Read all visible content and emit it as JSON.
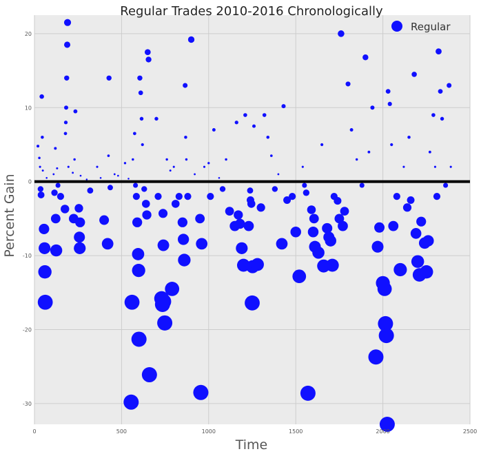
{
  "chart_data": {
    "type": "scatter",
    "title": "Regular Trades 2010-2016 Chronologically",
    "xlabel": "Time",
    "ylabel": "Percent Gain",
    "xlim": [
      0,
      2500
    ],
    "ylim": [
      -32.8,
      22.5
    ],
    "x_ticks": [
      0,
      500,
      1000,
      1500,
      2000,
      2500
    ],
    "y_ticks": [
      20,
      10,
      0,
      -10,
      -20,
      -30
    ],
    "grid": true,
    "legend": {
      "position": "top-right",
      "entries": [
        "Regular"
      ]
    },
    "reference_line_y": 0,
    "colors": {
      "points": "#1010ff",
      "background": "#ebebeb",
      "grid": "#cccccc",
      "reference_line": "#000000"
    },
    "series": [
      {
        "name": "Regular",
        "note_size": "marker area proportional to loss magnitude",
        "points": [
          [
            20,
            4.8
          ],
          [
            28,
            3.2
          ],
          [
            32,
            2.0
          ],
          [
            35,
            -1.0
          ],
          [
            38,
            -1.8
          ],
          [
            42,
            11.5
          ],
          [
            45,
            6.0
          ],
          [
            48,
            1.5
          ],
          [
            55,
            -6.4
          ],
          [
            58,
            -9.0
          ],
          [
            60,
            -12.2
          ],
          [
            62,
            -16.3
          ],
          [
            70,
            0.5
          ],
          [
            110,
            1.0
          ],
          [
            115,
            -1.5
          ],
          [
            120,
            4.5
          ],
          [
            122,
            -5.0
          ],
          [
            125,
            -9.3
          ],
          [
            130,
            1.8
          ],
          [
            135,
            -0.5
          ],
          [
            150,
            -2.0
          ],
          [
            175,
            -3.7
          ],
          [
            178,
            6.5
          ],
          [
            180,
            8.0
          ],
          [
            182,
            10.0
          ],
          [
            185,
            14.0
          ],
          [
            188,
            18.5
          ],
          [
            190,
            21.5
          ],
          [
            195,
            2.0
          ],
          [
            220,
            1.2
          ],
          [
            225,
            -5.0
          ],
          [
            230,
            3.0
          ],
          [
            235,
            9.5
          ],
          [
            255,
            -3.6
          ],
          [
            258,
            -7.5
          ],
          [
            260,
            -9.0
          ],
          [
            262,
            -5.5
          ],
          [
            265,
            0.8
          ],
          [
            300,
            0.3
          ],
          [
            320,
            -1.2
          ],
          [
            360,
            2.0
          ],
          [
            380,
            0.5
          ],
          [
            400,
            -5.2
          ],
          [
            420,
            -8.4
          ],
          [
            425,
            3.5
          ],
          [
            428,
            14.0
          ],
          [
            435,
            -0.8
          ],
          [
            460,
            1.0
          ],
          [
            480,
            0.8
          ],
          [
            520,
            2.5
          ],
          [
            540,
            0.4
          ],
          [
            555,
            -29.8
          ],
          [
            560,
            -16.3
          ],
          [
            565,
            3.0
          ],
          [
            575,
            6.5
          ],
          [
            580,
            -0.5
          ],
          [
            585,
            -2.0
          ],
          [
            590,
            -5.5
          ],
          [
            595,
            -9.8
          ],
          [
            598,
            -12.0
          ],
          [
            600,
            -21.3
          ],
          [
            605,
            14.0
          ],
          [
            610,
            12.0
          ],
          [
            615,
            8.5
          ],
          [
            620,
            5.0
          ],
          [
            630,
            -1.0
          ],
          [
            640,
            -3.0
          ],
          [
            645,
            -4.5
          ],
          [
            650,
            17.5
          ],
          [
            655,
            16.5
          ],
          [
            660,
            -26.1
          ],
          [
            670,
            0.0
          ],
          [
            700,
            8.5
          ],
          [
            710,
            -2.0
          ],
          [
            730,
            -15.8
          ],
          [
            735,
            -16.6
          ],
          [
            738,
            -4.3
          ],
          [
            740,
            -8.6
          ],
          [
            742,
            -16.2
          ],
          [
            748,
            -19.1
          ],
          [
            760,
            3.0
          ],
          [
            780,
            1.5
          ],
          [
            790,
            -14.5
          ],
          [
            800,
            2.0
          ],
          [
            810,
            -3.0
          ],
          [
            830,
            -2.0
          ],
          [
            850,
            -5.5
          ],
          [
            855,
            -7.8
          ],
          [
            860,
            -10.6
          ],
          [
            865,
            13.0
          ],
          [
            868,
            6.0
          ],
          [
            872,
            3.0
          ],
          [
            880,
            -2.0
          ],
          [
            900,
            19.2
          ],
          [
            920,
            1.0
          ],
          [
            950,
            -5.0
          ],
          [
            955,
            -28.5
          ],
          [
            960,
            -8.4
          ],
          [
            975,
            2.0
          ],
          [
            1000,
            2.5
          ],
          [
            1010,
            -2.0
          ],
          [
            1030,
            7.0
          ],
          [
            1060,
            0.5
          ],
          [
            1080,
            -1.0
          ],
          [
            1100,
            3.0
          ],
          [
            1120,
            -4.0
          ],
          [
            1150,
            -6.0
          ],
          [
            1160,
            8.0
          ],
          [
            1170,
            -4.5
          ],
          [
            1180,
            -5.7
          ],
          [
            1190,
            -9.0
          ],
          [
            1200,
            -11.3
          ],
          [
            1210,
            9.0
          ],
          [
            1230,
            -6.0
          ],
          [
            1238,
            -1.2
          ],
          [
            1240,
            -2.5
          ],
          [
            1245,
            -3.0
          ],
          [
            1250,
            -16.4
          ],
          [
            1252,
            -11.5
          ],
          [
            1260,
            7.5
          ],
          [
            1280,
            -11.2
          ],
          [
            1300,
            -3.5
          ],
          [
            1320,
            9.0
          ],
          [
            1340,
            6.0
          ],
          [
            1360,
            3.5
          ],
          [
            1380,
            -1.0
          ],
          [
            1400,
            1.0
          ],
          [
            1420,
            -8.4
          ],
          [
            1430,
            10.2
          ],
          [
            1450,
            -2.5
          ],
          [
            1480,
            -2.0
          ],
          [
            1500,
            -6.8
          ],
          [
            1520,
            -12.8
          ],
          [
            1540,
            2.0
          ],
          [
            1550,
            -0.5
          ],
          [
            1560,
            -1.5
          ],
          [
            1570,
            -28.6
          ],
          [
            1590,
            -3.8
          ],
          [
            1600,
            -6.8
          ],
          [
            1605,
            -5.0
          ],
          [
            1610,
            -8.8
          ],
          [
            1630,
            -9.6
          ],
          [
            1650,
            5.0
          ],
          [
            1660,
            -11.4
          ],
          [
            1680,
            -6.3
          ],
          [
            1690,
            -7.5
          ],
          [
            1700,
            -8.0
          ],
          [
            1710,
            -11.3
          ],
          [
            1720,
            -2.0
          ],
          [
            1740,
            -2.6
          ],
          [
            1750,
            -5.0
          ],
          [
            1760,
            20.0
          ],
          [
            1770,
            -6.0
          ],
          [
            1780,
            -4.0
          ],
          [
            1800,
            13.2
          ],
          [
            1820,
            7.0
          ],
          [
            1850,
            3.0
          ],
          [
            1880,
            -0.5
          ],
          [
            1900,
            16.8
          ],
          [
            1920,
            4.0
          ],
          [
            1940,
            10.0
          ],
          [
            1960,
            -23.7
          ],
          [
            1970,
            -8.8
          ],
          [
            1980,
            -6.2
          ],
          [
            2000,
            -13.7
          ],
          [
            2010,
            -14.5
          ],
          [
            2015,
            -19.2
          ],
          [
            2020,
            -20.8
          ],
          [
            2025,
            -32.8
          ],
          [
            2030,
            12.2
          ],
          [
            2040,
            10.5
          ],
          [
            2050,
            5.0
          ],
          [
            2060,
            -6.0
          ],
          [
            2080,
            -2.0
          ],
          [
            2100,
            -11.9
          ],
          [
            2120,
            2.0
          ],
          [
            2140,
            -3.5
          ],
          [
            2150,
            6.0
          ],
          [
            2160,
            -2.5
          ],
          [
            2180,
            14.5
          ],
          [
            2190,
            -7.0
          ],
          [
            2200,
            -10.8
          ],
          [
            2210,
            -12.6
          ],
          [
            2220,
            -5.4
          ],
          [
            2240,
            -8.3
          ],
          [
            2250,
            -12.2
          ],
          [
            2260,
            -8.0
          ],
          [
            2270,
            4.0
          ],
          [
            2290,
            9.0
          ],
          [
            2300,
            2.0
          ],
          [
            2310,
            -2.0
          ],
          [
            2320,
            17.6
          ],
          [
            2330,
            12.2
          ],
          [
            2340,
            8.5
          ],
          [
            2360,
            -0.5
          ],
          [
            2380,
            13.0
          ],
          [
            2390,
            2.0
          ]
        ]
      }
    ]
  }
}
